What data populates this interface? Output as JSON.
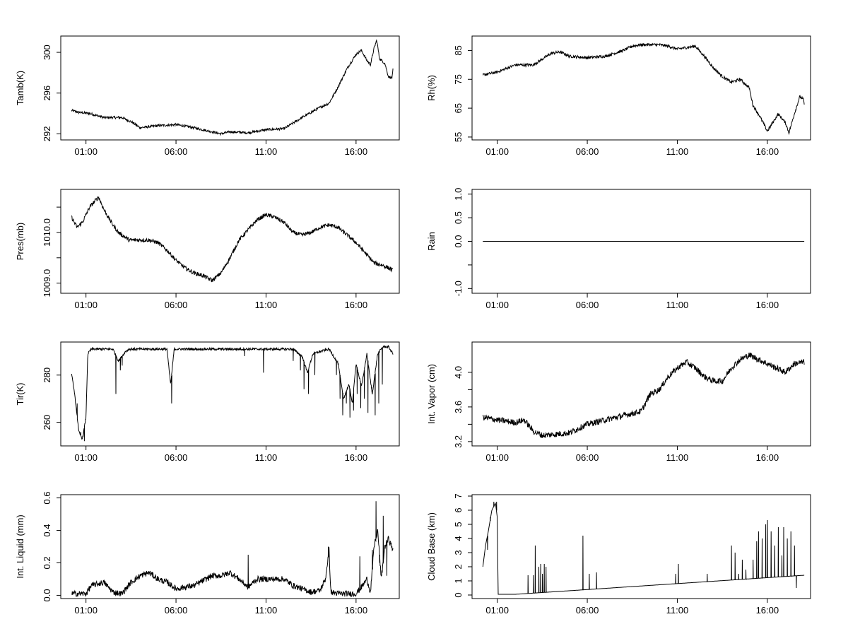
{
  "figure": {
    "x_tick_labels": [
      "01:00",
      "06:00",
      "11:00",
      "16:00"
    ],
    "line_color": "#000000",
    "background": "#ffffff"
  },
  "chart_data": [
    {
      "id": "tamb",
      "type": "line",
      "ylabel": "Tamb(K)",
      "ylim": [
        291.4,
        301.6
      ],
      "yticks": [
        292,
        296,
        300
      ],
      "ytick_labels": [
        "292",
        "296",
        "300"
      ],
      "xticks": [
        1,
        6,
        11,
        16
      ],
      "xlim": [
        -0.4,
        18.4
      ],
      "keypoints": [
        [
          0.2,
          294.3
        ],
        [
          0.6,
          294.1
        ],
        [
          1.2,
          294.0
        ],
        [
          2.0,
          293.6
        ],
        [
          3.0,
          293.6
        ],
        [
          3.6,
          293.1
        ],
        [
          4.0,
          292.6
        ],
        [
          5.0,
          292.8
        ],
        [
          6.0,
          292.9
        ],
        [
          7.0,
          292.6
        ],
        [
          8.0,
          292.2
        ],
        [
          8.5,
          292.0
        ],
        [
          9.0,
          292.2
        ],
        [
          10.0,
          292.1
        ],
        [
          11.0,
          292.4
        ],
        [
          12.0,
          292.5
        ],
        [
          13.0,
          293.6
        ],
        [
          14.0,
          294.6
        ],
        [
          14.5,
          295.0
        ],
        [
          15.0,
          296.6
        ],
        [
          15.5,
          298.4
        ],
        [
          16.0,
          299.8
        ],
        [
          16.3,
          300.2
        ],
        [
          16.6,
          299.2
        ],
        [
          16.8,
          298.8
        ],
        [
          17.0,
          300.4
        ],
        [
          17.15,
          301.2
        ],
        [
          17.3,
          299.4
        ],
        [
          17.6,
          298.9
        ],
        [
          17.8,
          297.6
        ],
        [
          18.0,
          297.5
        ],
        [
          18.05,
          298.3
        ]
      ],
      "noise": 0.12
    },
    {
      "id": "rh",
      "type": "line",
      "ylabel": "Rh(%)",
      "ylim": [
        54,
        90
      ],
      "yticks": [
        55,
        65,
        75,
        85
      ],
      "ytick_labels": [
        "55",
        "65",
        "75",
        "85"
      ],
      "xticks": [
        1,
        6,
        11,
        16
      ],
      "xlim": [
        -0.4,
        18.4
      ],
      "keypoints": [
        [
          0.2,
          76.5
        ],
        [
          1.0,
          77.5
        ],
        [
          2.0,
          80.0
        ],
        [
          3.0,
          80.0
        ],
        [
          4.0,
          84.0
        ],
        [
          4.5,
          84.5
        ],
        [
          5.0,
          83.0
        ],
        [
          6.0,
          82.5
        ],
        [
          7.0,
          83.0
        ],
        [
          8.0,
          85.0
        ],
        [
          8.5,
          86.5
        ],
        [
          9.0,
          87.0
        ],
        [
          10.0,
          87.0
        ],
        [
          10.5,
          86.5
        ],
        [
          11.0,
          85.5
        ],
        [
          12.0,
          86.5
        ],
        [
          12.5,
          83.0
        ],
        [
          13.0,
          79.0
        ],
        [
          13.5,
          76.0
        ],
        [
          14.0,
          74.0
        ],
        [
          14.5,
          75.0
        ],
        [
          15.0,
          72.0
        ],
        [
          15.2,
          66.0
        ],
        [
          15.6,
          62.0
        ],
        [
          16.0,
          57.0
        ],
        [
          16.3,
          60.0
        ],
        [
          16.6,
          63.0
        ],
        [
          17.0,
          60.0
        ],
        [
          17.2,
          56.5
        ],
        [
          17.5,
          63.0
        ],
        [
          17.8,
          69.0
        ],
        [
          18.0,
          68.0
        ],
        [
          18.05,
          66.5
        ]
      ],
      "noise": 0.5
    },
    {
      "id": "pres",
      "type": "line",
      "ylabel": "Pres(mb)",
      "ylim": [
        1008.8,
        1010.85
      ],
      "yticks": [
        1009.0,
        1009.5,
        1010.0,
        1010.5
      ],
      "ytick_labels": [
        "1009.0",
        "",
        "1010.0",
        ""
      ],
      "xticks": [
        1,
        6,
        11,
        16
      ],
      "xlim": [
        -0.4,
        18.4
      ],
      "keypoints": [
        [
          0.2,
          1010.3
        ],
        [
          0.5,
          1010.1
        ],
        [
          0.8,
          1010.2
        ],
        [
          1.2,
          1010.5
        ],
        [
          1.7,
          1010.7
        ],
        [
          2.0,
          1010.45
        ],
        [
          2.4,
          1010.2
        ],
        [
          2.8,
          1010.0
        ],
        [
          3.4,
          1009.85
        ],
        [
          4.0,
          1009.85
        ],
        [
          4.5,
          1009.85
        ],
        [
          5.0,
          1009.8
        ],
        [
          5.5,
          1009.65
        ],
        [
          6.0,
          1009.45
        ],
        [
          6.5,
          1009.3
        ],
        [
          7.0,
          1009.2
        ],
        [
          7.5,
          1009.15
        ],
        [
          8.0,
          1009.05
        ],
        [
          8.5,
          1009.2
        ],
        [
          9.0,
          1009.5
        ],
        [
          9.5,
          1009.85
        ],
        [
          10.0,
          1010.05
        ],
        [
          10.5,
          1010.25
        ],
        [
          11.0,
          1010.35
        ],
        [
          11.5,
          1010.3
        ],
        [
          12.0,
          1010.2
        ],
        [
          12.5,
          1010.0
        ],
        [
          13.0,
          1009.95
        ],
        [
          13.5,
          1010.0
        ],
        [
          14.0,
          1010.1
        ],
        [
          14.5,
          1010.15
        ],
        [
          15.0,
          1010.1
        ],
        [
          15.5,
          1009.95
        ],
        [
          16.0,
          1009.8
        ],
        [
          16.5,
          1009.6
        ],
        [
          17.0,
          1009.4
        ],
        [
          17.5,
          1009.35
        ],
        [
          17.8,
          1009.3
        ],
        [
          18.05,
          1009.25
        ]
      ],
      "noise": 0.04
    },
    {
      "id": "rain",
      "type": "line",
      "ylabel": "Rain",
      "ylim": [
        -1.1,
        1.1
      ],
      "yticks": [
        -1.0,
        -0.5,
        0.0,
        0.5,
        1.0
      ],
      "ytick_labels": [
        "-1.0",
        "",
        "0.0",
        "0.5",
        "1.0"
      ],
      "xticks": [
        1,
        6,
        11,
        16
      ],
      "xlim": [
        -0.4,
        18.4
      ],
      "keypoints": [
        [
          0.2,
          0.0
        ],
        [
          18.05,
          0.0
        ]
      ],
      "noise": 0
    },
    {
      "id": "tir",
      "type": "line",
      "ylabel": "Tir(K)",
      "ylim": [
        250,
        294
      ],
      "yticks": [
        260,
        280
      ],
      "ytick_labels": [
        "260",
        "280"
      ],
      "xticks": [
        1,
        6,
        11,
        16
      ],
      "xlim": [
        -0.4,
        18.4
      ],
      "keypoints": [
        [
          0.2,
          281
        ],
        [
          0.4,
          270
        ],
        [
          0.6,
          256
        ],
        [
          0.8,
          253
        ],
        [
          1.0,
          262
        ],
        [
          1.1,
          289
        ],
        [
          1.3,
          291
        ],
        [
          2.5,
          291
        ],
        [
          2.8,
          286
        ],
        [
          3.2,
          290
        ],
        [
          3.4,
          291
        ],
        [
          5.5,
          291
        ],
        [
          5.7,
          276
        ],
        [
          5.9,
          291
        ],
        [
          9.5,
          291
        ],
        [
          10.0,
          291
        ],
        [
          12.0,
          291
        ],
        [
          12.5,
          291
        ],
        [
          13.0,
          288
        ],
        [
          13.3,
          281
        ],
        [
          13.6,
          289
        ],
        [
          14.0,
          290
        ],
        [
          14.5,
          291
        ],
        [
          15.0,
          285
        ],
        [
          15.3,
          270
        ],
        [
          15.6,
          276
        ],
        [
          15.8,
          268
        ],
        [
          16.0,
          285
        ],
        [
          16.3,
          275
        ],
        [
          16.6,
          289
        ],
        [
          16.9,
          272
        ],
        [
          17.2,
          289
        ],
        [
          17.5,
          292
        ],
        [
          17.8,
          292
        ],
        [
          18.05,
          289
        ]
      ],
      "noise": 0.5,
      "spikes": [
        [
          0.5,
          268
        ],
        [
          0.7,
          256
        ],
        [
          0.9,
          252
        ],
        [
          2.65,
          272
        ],
        [
          2.9,
          282
        ],
        [
          3.0,
          284
        ],
        [
          5.75,
          268
        ],
        [
          9.8,
          288
        ],
        [
          10.85,
          281
        ],
        [
          12.5,
          286
        ],
        [
          12.9,
          282
        ],
        [
          13.1,
          274
        ],
        [
          13.35,
          272
        ],
        [
          13.7,
          280
        ],
        [
          14.9,
          280
        ],
        [
          15.1,
          270
        ],
        [
          15.25,
          263
        ],
        [
          15.45,
          268
        ],
        [
          15.65,
          262
        ],
        [
          15.85,
          265
        ],
        [
          16.05,
          272
        ],
        [
          16.25,
          266
        ],
        [
          16.45,
          270
        ],
        [
          16.65,
          264
        ],
        [
          16.85,
          274
        ],
        [
          17.05,
          263
        ],
        [
          17.25,
          268
        ],
        [
          17.45,
          276
        ]
      ]
    },
    {
      "id": "vapor",
      "type": "line",
      "ylabel": "Int. Vapor (cm)",
      "ylim": [
        3.15,
        4.35
      ],
      "yticks": [
        3.2,
        3.4,
        3.6,
        3.8,
        4.0
      ],
      "ytick_labels": [
        "3.2",
        "",
        "3.6",
        "",
        "4.0"
      ],
      "xticks": [
        1,
        6,
        11,
        16
      ],
      "xlim": [
        -0.4,
        18.4
      ],
      "keypoints": [
        [
          0.2,
          3.48
        ],
        [
          1.0,
          3.45
        ],
        [
          2.0,
          3.42
        ],
        [
          2.5,
          3.45
        ],
        [
          3.0,
          3.32
        ],
        [
          3.5,
          3.27
        ],
        [
          4.0,
          3.28
        ],
        [
          5.0,
          3.3
        ],
        [
          6.0,
          3.4
        ],
        [
          7.0,
          3.45
        ],
        [
          8.0,
          3.5
        ],
        [
          9.0,
          3.55
        ],
        [
          9.5,
          3.75
        ],
        [
          10.0,
          3.8
        ],
        [
          10.5,
          3.95
        ],
        [
          11.0,
          4.05
        ],
        [
          11.5,
          4.12
        ],
        [
          12.0,
          4.05
        ],
        [
          12.5,
          3.95
        ],
        [
          13.0,
          3.9
        ],
        [
          13.5,
          3.9
        ],
        [
          14.0,
          4.05
        ],
        [
          14.5,
          4.15
        ],
        [
          15.0,
          4.2
        ],
        [
          15.5,
          4.15
        ],
        [
          16.0,
          4.1
        ],
        [
          16.5,
          4.05
        ],
        [
          17.0,
          4.0
        ],
        [
          17.5,
          4.1
        ],
        [
          18.05,
          4.12
        ]
      ],
      "noise": 0.035
    },
    {
      "id": "liquid",
      "type": "line",
      "ylabel": "Int. Liquid (mm)",
      "ylim": [
        -0.02,
        0.62
      ],
      "yticks": [
        0.0,
        0.2,
        0.4,
        0.6
      ],
      "ytick_labels": [
        "0.0",
        "0.2",
        "0.4",
        "0.6"
      ],
      "xticks": [
        1,
        6,
        11,
        16
      ],
      "xlim": [
        -0.4,
        18.4
      ],
      "keypoints": [
        [
          0.2,
          0.01
        ],
        [
          1.0,
          0.01
        ],
        [
          1.3,
          0.06
        ],
        [
          2.0,
          0.08
        ],
        [
          2.5,
          0.02
        ],
        [
          3.0,
          0.01
        ],
        [
          3.5,
          0.08
        ],
        [
          4.0,
          0.12
        ],
        [
          4.5,
          0.14
        ],
        [
          5.0,
          0.1
        ],
        [
          5.5,
          0.08
        ],
        [
          6.0,
          0.04
        ],
        [
          7.0,
          0.06
        ],
        [
          8.0,
          0.12
        ],
        [
          8.5,
          0.12
        ],
        [
          9.0,
          0.14
        ],
        [
          9.5,
          0.1
        ],
        [
          10.0,
          0.05
        ],
        [
          10.5,
          0.1
        ],
        [
          11.0,
          0.1
        ],
        [
          12.0,
          0.1
        ],
        [
          12.5,
          0.06
        ],
        [
          13.0,
          0.04
        ],
        [
          13.5,
          0.02
        ],
        [
          14.0,
          0.03
        ],
        [
          14.3,
          0.1
        ],
        [
          14.5,
          0.28
        ],
        [
          14.6,
          0.02
        ],
        [
          15.0,
          0.01
        ],
        [
          16.0,
          0.01
        ],
        [
          16.3,
          0.05
        ],
        [
          16.6,
          0.1
        ],
        [
          16.8,
          0.02
        ],
        [
          17.0,
          0.3
        ],
        [
          17.2,
          0.4
        ],
        [
          17.4,
          0.1
        ],
        [
          17.6,
          0.3
        ],
        [
          17.8,
          0.35
        ],
        [
          18.05,
          0.28
        ]
      ],
      "noise": 0.018,
      "spikes": [
        [
          14.45,
          0.3
        ],
        [
          16.2,
          0.24
        ],
        [
          16.9,
          0.28
        ],
        [
          17.1,
          0.58
        ],
        [
          17.3,
          0.2
        ],
        [
          17.5,
          0.49
        ],
        [
          17.7,
          0.12
        ],
        [
          17.9,
          0.32
        ],
        [
          10.0,
          0.25
        ]
      ]
    },
    {
      "id": "cloud",
      "type": "line",
      "ylabel": "Cloud Base (km)",
      "ylim": [
        -0.25,
        7.1
      ],
      "yticks": [
        0,
        1,
        2,
        3,
        4,
        5,
        6,
        7
      ],
      "ytick_labels": [
        "0",
        "1",
        "2",
        "3",
        "4",
        "5",
        "6",
        "7"
      ],
      "xticks": [
        1,
        6,
        11,
        16
      ],
      "xlim": [
        -0.4,
        18.4
      ],
      "keypoints": [
        [
          0.2,
          2.0
        ],
        [
          0.35,
          3.5
        ],
        [
          0.5,
          4.5
        ],
        [
          0.7,
          6.0
        ],
        [
          0.9,
          6.5
        ],
        [
          1.0,
          5.5
        ],
        [
          1.05,
          0.05
        ],
        [
          2.0,
          0.05
        ],
        [
          18.05,
          1.4
        ]
      ],
      "noise": 0,
      "spikes": [
        [
          0.45,
          3.2
        ],
        [
          0.6,
          5.5
        ],
        [
          0.8,
          6.6
        ],
        [
          0.95,
          6.6
        ],
        [
          1.4,
          0.05
        ],
        [
          2.7,
          1.4
        ],
        [
          3.0,
          1.4
        ],
        [
          3.1,
          3.5
        ],
        [
          3.3,
          2.0
        ],
        [
          3.4,
          2.2
        ],
        [
          3.5,
          1.5
        ],
        [
          3.6,
          2.2
        ],
        [
          3.7,
          2.0
        ],
        [
          5.75,
          4.2
        ],
        [
          6.1,
          1.5
        ],
        [
          6.5,
          1.6
        ],
        [
          10.9,
          1.5
        ],
        [
          11.05,
          2.2
        ],
        [
          12.65,
          1.5
        ],
        [
          14.0,
          3.5
        ],
        [
          14.2,
          3.0
        ],
        [
          14.4,
          1.5
        ],
        [
          14.6,
          2.5
        ],
        [
          14.8,
          1.8
        ],
        [
          15.2,
          2.5
        ],
        [
          15.4,
          3.8
        ],
        [
          15.5,
          4.5
        ],
        [
          15.7,
          4.0
        ],
        [
          15.9,
          5.0
        ],
        [
          16.0,
          5.3
        ],
        [
          16.2,
          4.5
        ],
        [
          16.4,
          3.5
        ],
        [
          16.6,
          4.8
        ],
        [
          16.8,
          2.8
        ],
        [
          16.9,
          4.8
        ],
        [
          17.1,
          4.0
        ],
        [
          17.3,
          4.5
        ],
        [
          17.5,
          3.5
        ],
        [
          17.6,
          0.5
        ]
      ]
    }
  ]
}
